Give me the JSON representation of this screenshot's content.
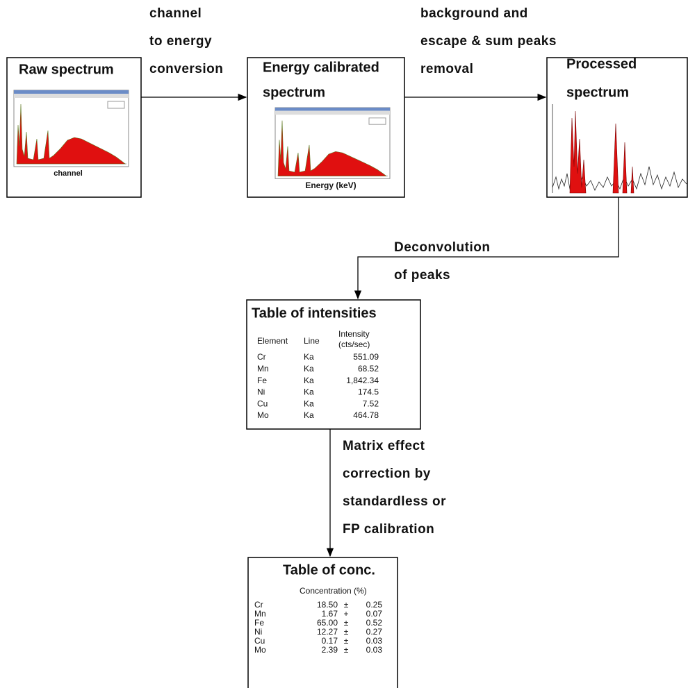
{
  "nodes": [
    {
      "title": [
        "Raw spectrum"
      ],
      "axis_label": "channel"
    },
    {
      "title": [
        "Energy calibrated",
        "spectrum"
      ],
      "axis_label": "Energy (keV)"
    },
    {
      "title": [
        "Processed",
        "spectrum"
      ]
    }
  ],
  "edges": [
    {
      "label": [
        "channel",
        "to energy",
        "conversion"
      ]
    },
    {
      "label": [
        "background and",
        "escape & sum peaks",
        "removal"
      ]
    },
    {
      "label": [
        "Deconvolution",
        "of peaks"
      ]
    },
    {
      "label": [
        "Matrix effect",
        "correction by",
        "standardless or",
        "FP calibration"
      ]
    }
  ],
  "intensity_table": {
    "title": "Table of intensities",
    "headers": [
      "Element",
      "Line",
      [
        "Intensity",
        "(cts/sec)"
      ]
    ],
    "rows": [
      [
        "Cr",
        "Ka",
        "551.09"
      ],
      [
        "Mn",
        "Ka",
        "68.52"
      ],
      [
        "Fe",
        "Ka",
        "1,842.34"
      ],
      [
        "Ni",
        "Ka",
        "174.5"
      ],
      [
        "Cu",
        "Ka",
        "7.52"
      ],
      [
        "Mo",
        "Ka",
        "464.78"
      ]
    ]
  },
  "concentration_table": {
    "title": "Table of conc.",
    "header": "Concentration (%)",
    "rows": [
      [
        "Cr",
        "18.50",
        "±",
        "0.25"
      ],
      [
        "Mn",
        "1.67",
        "+",
        "0.07"
      ],
      [
        "Fe",
        "65.00",
        "±",
        "0.52"
      ],
      [
        "Ni",
        "12.27",
        "±",
        "0.27"
      ],
      [
        "Cu",
        "0.17",
        "±",
        "0.03"
      ],
      [
        "Mo",
        "2.39",
        "±",
        "0.03"
      ]
    ]
  }
}
